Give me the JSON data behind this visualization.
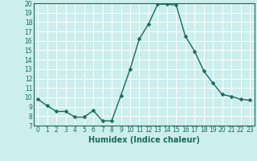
{
  "x": [
    0,
    1,
    2,
    3,
    4,
    5,
    6,
    7,
    8,
    9,
    10,
    11,
    12,
    13,
    14,
    15,
    16,
    17,
    18,
    19,
    20,
    21,
    22,
    23
  ],
  "y": [
    9.8,
    9.1,
    8.5,
    8.5,
    7.9,
    7.9,
    8.6,
    7.5,
    7.5,
    10.2,
    13.0,
    16.2,
    17.8,
    19.9,
    19.9,
    19.8,
    16.5,
    14.9,
    12.8,
    11.5,
    10.3,
    10.1,
    9.8,
    9.7
  ],
  "line_color": "#1a6b5a",
  "marker_color": "#1a6b5a",
  "bg_color": "#cceeed",
  "grid_color": "#ffffff",
  "xlabel": "Humidex (Indice chaleur)",
  "ylim": [
    7,
    20
  ],
  "xlim": [
    -0.5,
    23.5
  ],
  "yticks": [
    7,
    8,
    9,
    10,
    11,
    12,
    13,
    14,
    15,
    16,
    17,
    18,
    19,
    20
  ],
  "xticks": [
    0,
    1,
    2,
    3,
    4,
    5,
    6,
    7,
    8,
    9,
    10,
    11,
    12,
    13,
    14,
    15,
    16,
    17,
    18,
    19,
    20,
    21,
    22,
    23
  ],
  "xlabel_fontsize": 7,
  "tick_fontsize": 5.5,
  "marker_size": 2.5,
  "line_width": 1.0
}
